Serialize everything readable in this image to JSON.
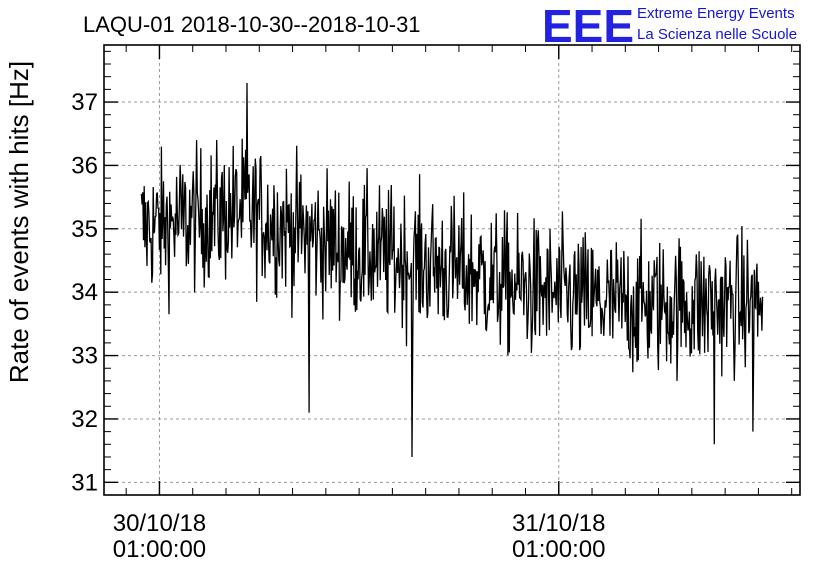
{
  "chart_data": {
    "type": "line",
    "title": "LAQU-01 2018-10-30--2018-10-31",
    "ylabel": "Rate of events with hits [Hz]",
    "xlabel": "",
    "ylim": [
      30.8,
      37.9
    ],
    "yticks": [
      31,
      32,
      33,
      34,
      35,
      36,
      37
    ],
    "ytick_labels": [
      "31",
      "32",
      "33",
      "34",
      "35",
      "36",
      "37"
    ],
    "xlim": [
      "2018-10-29 21:40",
      "2018-10-31 15:30"
    ],
    "xtick_labels": [
      {
        "x": "2018-10-30 01:00",
        "date": "30/10/18",
        "time": "01:00:00"
      },
      {
        "x": "2018-10-31 01:00",
        "date": "31/10/18",
        "time": "01:00:00"
      }
    ],
    "grid": true,
    "line_color": "#000000",
    "series": [
      {
        "x": [
          "2018-10-29 23:55",
          "2018-10-30 02:00",
          "2018-10-30 04:00",
          "2018-10-30 06:00",
          "2018-10-30 08:00",
          "2018-10-30 10:00",
          "2018-10-30 12:00",
          "2018-10-30 14:00",
          "2018-10-30 16:00",
          "2018-10-30 18:00",
          "2018-10-30 20:00",
          "2018-10-30 22:00",
          "2018-10-31 00:00",
          "2018-10-31 02:00",
          "2018-10-31 04:00",
          "2018-10-31 06:00",
          "2018-10-31 08:00",
          "2018-10-31 10:00",
          "2018-10-31 12:00",
          "2018-10-31 13:15"
        ],
        "values": [
          35.0,
          35.1,
          35.2,
          35.3,
          35.1,
          34.9,
          34.7,
          34.6,
          34.5,
          34.4,
          34.3,
          34.1,
          34.0,
          33.9,
          33.8,
          33.8,
          33.8,
          33.8,
          33.8,
          33.8
        ],
        "spread": 1.0
      }
    ],
    "y_extremes": [
      {
        "x": "2018-10-30 06:15",
        "y": 37.3
      },
      {
        "x": "2018-10-30 16:10",
        "y": 31.4
      },
      {
        "x": "2018-10-30 10:00",
        "y": 32.1
      },
      {
        "x": "2018-10-31 10:20",
        "y": 31.6
      },
      {
        "x": "2018-10-31 12:40",
        "y": 31.8
      }
    ]
  },
  "logo": {
    "mark": "EEE",
    "line1": "Extreme Energy Events",
    "line2": "La Scienza nelle Scuole",
    "color": "#2222e0"
  }
}
